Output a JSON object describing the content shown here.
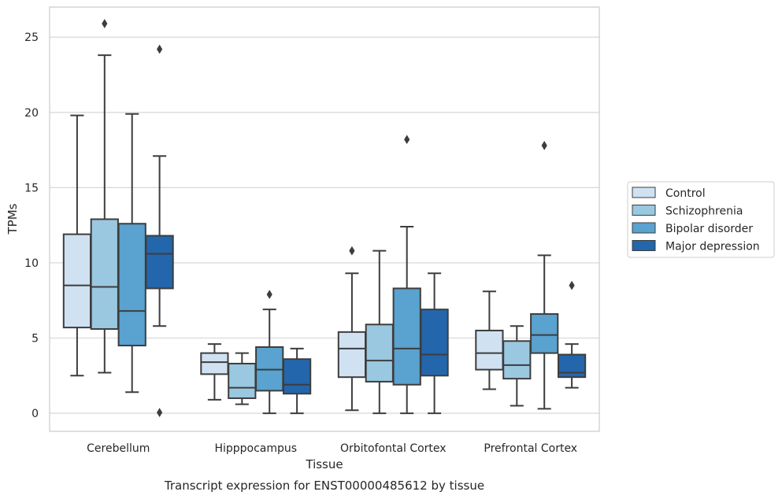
{
  "chart_data": {
    "type": "box",
    "caption": "Transcript expression for ENST00000485612 by tissue",
    "xlabel": "Tissue",
    "ylabel": "TPMs",
    "ylim": [
      -1.2,
      27
    ],
    "yticks": [
      0,
      5,
      10,
      15,
      20,
      25
    ],
    "grid": "horizontal",
    "legend_position": "right",
    "categories": [
      "Cerebellum",
      "Hipppocampus",
      "Orbitofontal Cortex",
      "Prefrontal Cortex"
    ],
    "series": [
      {
        "name": "Control",
        "color": "#d0e1f2",
        "boxes": [
          {
            "whislo": 2.5,
            "q1": 5.7,
            "med": 8.5,
            "q3": 11.9,
            "whishi": 19.8,
            "fliers": []
          },
          {
            "whislo": 0.9,
            "q1": 2.6,
            "med": 3.4,
            "q3": 4.0,
            "whishi": 4.6,
            "fliers": []
          },
          {
            "whislo": 0.2,
            "q1": 2.4,
            "med": 4.3,
            "q3": 5.4,
            "whishi": 9.3,
            "fliers": [
              10.8
            ]
          },
          {
            "whislo": 1.6,
            "q1": 2.9,
            "med": 4.0,
            "q3": 5.5,
            "whishi": 8.1,
            "fliers": []
          }
        ]
      },
      {
        "name": "Schizophrenia",
        "color": "#9ac8e0",
        "boxes": [
          {
            "whislo": 2.7,
            "q1": 5.6,
            "med": 8.4,
            "q3": 12.9,
            "whishi": 23.8,
            "fliers": [
              25.9
            ]
          },
          {
            "whislo": 0.6,
            "q1": 1.0,
            "med": 1.7,
            "q3": 3.3,
            "whishi": 4.0,
            "fliers": []
          },
          {
            "whislo": 0.0,
            "q1": 2.1,
            "med": 3.5,
            "q3": 5.9,
            "whishi": 10.8,
            "fliers": []
          },
          {
            "whislo": 0.5,
            "q1": 2.3,
            "med": 3.2,
            "q3": 4.8,
            "whishi": 5.8,
            "fliers": []
          }
        ]
      },
      {
        "name": "Bipolar disorder",
        "color": "#5aa2cf",
        "boxes": [
          {
            "whislo": 1.4,
            "q1": 4.5,
            "med": 6.8,
            "q3": 12.6,
            "whishi": 19.9,
            "fliers": []
          },
          {
            "whislo": 0.0,
            "q1": 1.5,
            "med": 2.9,
            "q3": 4.4,
            "whishi": 6.9,
            "fliers": [
              7.9
            ]
          },
          {
            "whislo": 0.0,
            "q1": 1.9,
            "med": 4.3,
            "q3": 8.3,
            "whishi": 12.4,
            "fliers": [
              18.2
            ]
          },
          {
            "whislo": 0.3,
            "q1": 4.0,
            "med": 5.2,
            "q3": 6.6,
            "whishi": 10.5,
            "fliers": [
              17.8
            ]
          }
        ]
      },
      {
        "name": "Major depression",
        "color": "#2366ab",
        "boxes": [
          {
            "whislo": 5.8,
            "q1": 8.3,
            "med": 10.6,
            "q3": 11.8,
            "whishi": 17.1,
            "fliers": [
              24.2,
              0.05
            ]
          },
          {
            "whislo": 0.0,
            "q1": 1.3,
            "med": 1.9,
            "q3": 3.6,
            "whishi": 4.3,
            "fliers": []
          },
          {
            "whislo": 0.0,
            "q1": 2.5,
            "med": 3.9,
            "q3": 6.9,
            "whishi": 9.3,
            "fliers": []
          },
          {
            "whislo": 1.7,
            "q1": 2.4,
            "med": 2.7,
            "q3": 3.9,
            "whishi": 4.6,
            "fliers": [
              8.5
            ]
          }
        ]
      }
    ]
  }
}
